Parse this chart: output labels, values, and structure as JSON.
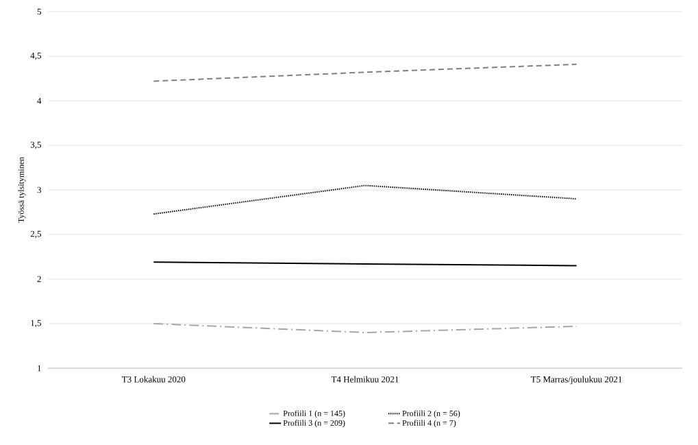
{
  "chart_data": {
    "type": "line",
    "ylabel": "Työssä tylsityminen",
    "categories": [
      "T3 Lokakuu 2020",
      "T4 Helmikuu 2021",
      "T5 Marras/joulukuu 2021"
    ],
    "series": [
      {
        "name": "Profiili 1 (n = 145)",
        "color": "#a6a6a6",
        "line_style": "dashdot",
        "values": [
          1.5,
          1.4,
          1.47
        ]
      },
      {
        "name": "Profiili 2 (n = 56)",
        "color": "#000000",
        "line_style": "dotted",
        "values": [
          2.73,
          3.05,
          2.9
        ]
      },
      {
        "name": "Profiili 3 (n = 209)",
        "color": "#000000",
        "line_style": "solid",
        "values": [
          2.19,
          2.17,
          2.15
        ]
      },
      {
        "name": "Profiili 4 (n = 7)",
        "color": "#7f7f7f",
        "line_style": "dashed",
        "values": [
          4.22,
          4.32,
          4.41
        ]
      }
    ],
    "ylim": [
      1,
      5
    ],
    "yticks": [
      1,
      {
        "value": 1.5,
        "label": "1,5"
      },
      2,
      {
        "value": 2.5,
        "label": "2,5"
      },
      3,
      {
        "value": 3.5,
        "label": "3,5"
      },
      4,
      {
        "value": 4.5,
        "label": "4,5"
      },
      5
    ],
    "grid": "y",
    "legend": "bottom",
    "marker": "none"
  }
}
